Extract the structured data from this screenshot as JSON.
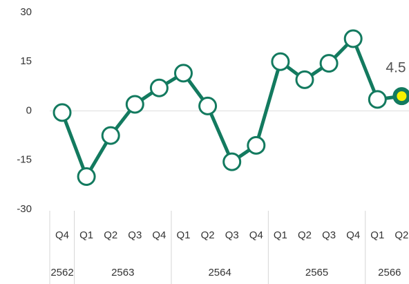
{
  "chart_data": {
    "type": "line",
    "groups": [
      {
        "label": "2562",
        "categories": [
          "Q4"
        ]
      },
      {
        "label": "2563",
        "categories": [
          "Q1",
          "Q2",
          "Q3",
          "Q4"
        ]
      },
      {
        "label": "2564",
        "categories": [
          "Q1",
          "Q2",
          "Q3",
          "Q4"
        ]
      },
      {
        "label": "2565",
        "categories": [
          "Q1",
          "Q2",
          "Q3",
          "Q4"
        ]
      },
      {
        "label": "2566",
        "categories": [
          "Q1",
          "Q2"
        ]
      }
    ],
    "series": [
      {
        "color": "#137a5f",
        "values": [
          -0.5,
          -20,
          -7.5,
          2,
          7,
          11.5,
          1.5,
          -15.5,
          -10.5,
          15,
          9.5,
          14.5,
          22,
          3.5,
          4.5
        ],
        "value_labels": [
          null,
          null,
          null,
          null,
          null,
          null,
          null,
          null,
          null,
          null,
          null,
          null,
          null,
          null,
          "4.5"
        ]
      }
    ],
    "highlight_color": "#f7f200",
    "ylim": [
      -30,
      30
    ],
    "yticks": [
      -30,
      -15,
      0,
      15,
      30
    ]
  }
}
